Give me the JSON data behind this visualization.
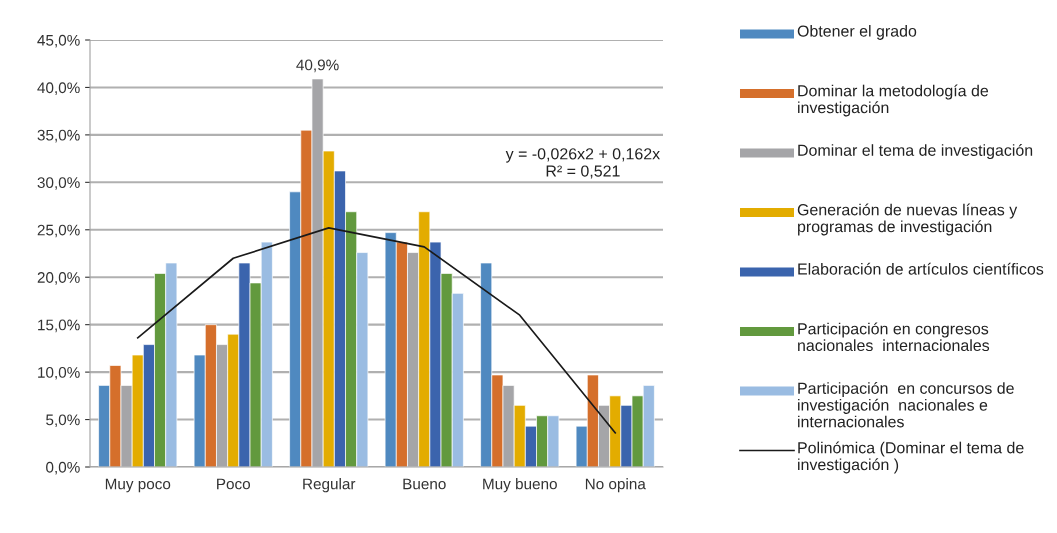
{
  "chart_data": {
    "type": "bar",
    "categories": [
      "Muy poco",
      "Poco",
      "Regular",
      "Bueno",
      "Muy bueno",
      "No opina"
    ],
    "series": [
      {
        "name": "Obtener el grado",
        "color": "#4f89c0",
        "values": [
          8.6,
          11.8,
          29.0,
          24.7,
          21.5,
          4.3
        ]
      },
      {
        "name": "Dominar la metodología de investigación",
        "color": "#d56f2b",
        "values": [
          10.7,
          15.0,
          35.5,
          23.7,
          9.7,
          9.7
        ]
      },
      {
        "name": "Dominar el tema de investigación",
        "color": "#a5a5a8",
        "values": [
          8.6,
          12.9,
          40.9,
          22.6,
          8.6,
          6.5
        ],
        "value_labels": [
          null,
          null,
          "40,9%",
          null,
          null,
          null
        ]
      },
      {
        "name": "Generación de nuevas líneas y programas de investigación",
        "color": "#e3ac00",
        "values": [
          11.8,
          14.0,
          33.3,
          26.9,
          6.5,
          7.5
        ]
      },
      {
        "name": "Elaboración de artículos científicos",
        "color": "#3b64ad",
        "values": [
          12.9,
          21.5,
          31.2,
          23.7,
          4.3,
          6.5
        ]
      },
      {
        "name": "Participación en congresos nacionales  internacionales",
        "color": "#62993e",
        "values": [
          20.4,
          19.4,
          26.9,
          20.4,
          5.4,
          7.5
        ]
      },
      {
        "name": "Participación  en concursos de investigación  nacionales e internacionales",
        "color": "#9abce2",
        "values": [
          21.5,
          23.7,
          22.6,
          18.3,
          5.4,
          8.6
        ]
      },
      {
        "name": "Polinómica (Dominar el tema de investigación )",
        "type": "line",
        "color": "#1a1a1a",
        "values": [
          13.6,
          22.0,
          25.2,
          23.2,
          16.0,
          3.6
        ]
      }
    ],
    "ylim": [
      0,
      45
    ],
    "yticks": [
      {
        "value": 0,
        "label": "0,0%"
      },
      {
        "value": 5,
        "label": "5,0%"
      },
      {
        "value": 10,
        "label": "10,0%"
      },
      {
        "value": 15,
        "label": "15,0%"
      },
      {
        "value": 20,
        "label": "20,0%"
      },
      {
        "value": 25,
        "label": "25,0%"
      },
      {
        "value": 30,
        "label": "30,0%"
      },
      {
        "value": 35,
        "label": "35,0%"
      },
      {
        "value": 40,
        "label": "40,0%"
      },
      {
        "value": 45,
        "label": "45,0%"
      }
    ],
    "annotations": [
      "y = -0,026x2 + 0,162x\nR² = 0,521"
    ],
    "grid": "y",
    "legend": "right"
  }
}
